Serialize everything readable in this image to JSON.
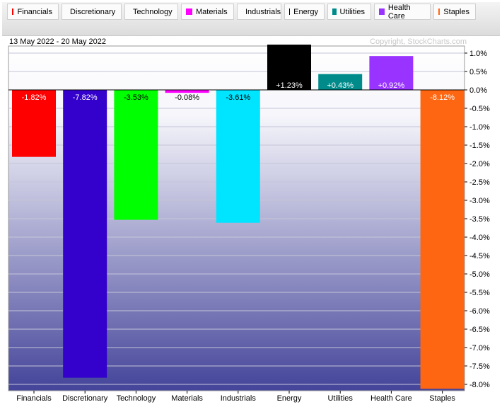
{
  "legend": [
    {
      "label": "Financials",
      "color": "#ff0000"
    },
    {
      "label": "Discretionary",
      "color": "#3300cc"
    },
    {
      "label": "Technology",
      "color": "#00ff00"
    },
    {
      "label": "Materials",
      "color": "#ff00ff"
    },
    {
      "label": "Industrials",
      "color": "#00e5ff"
    },
    {
      "label": "Energy",
      "color": "#000000"
    },
    {
      "label": "Utilities",
      "color": "#008b8b"
    },
    {
      "label": "Health Care",
      "color": "#9933ff"
    },
    {
      "label": "Staples",
      "color": "#ff6611"
    }
  ],
  "date_range": "13 May 2022 - 20 May 2022",
  "copyright": "Copyright, StockCharts.com",
  "chart_data": {
    "type": "bar",
    "categories": [
      "Financials",
      "Discretionary",
      "Technology",
      "Materials",
      "Industrials",
      "Energy",
      "Utilities",
      "Health Care",
      "Staples"
    ],
    "values": [
      -1.82,
      -7.82,
      -3.53,
      -0.08,
      -3.61,
      1.23,
      0.43,
      0.92,
      -8.12
    ],
    "labels": [
      "-1.82%",
      "-7.82%",
      "-3.53%",
      "-0.08%",
      "-3.61%",
      "+1.23%",
      "+0.43%",
      "+0.92%",
      "-8.12%"
    ],
    "colors": [
      "#ff0000",
      "#3300cc",
      "#00ff00",
      "#ff00ff",
      "#00e5ff",
      "#000000",
      "#008b8b",
      "#9933ff",
      "#ff6611"
    ],
    "ylim": [
      -8.2,
      1.2
    ],
    "yticks": [
      1.0,
      0.5,
      0.0,
      -0.5,
      -1.0,
      -1.5,
      -2.0,
      -2.5,
      -3.0,
      -3.5,
      -4.0,
      -4.5,
      -5.0,
      -5.5,
      -6.0,
      -6.5,
      -7.0,
      -7.5,
      -8.0
    ],
    "ytick_labels": [
      "1.0%",
      "0.5%",
      "0.0%",
      "-0.5%",
      "-1.0%",
      "-1.5%",
      "-2.0%",
      "-2.5%",
      "-3.0%",
      "-3.5%",
      "-4.0%",
      "-4.5%",
      "-5.0%",
      "-5.5%",
      "-6.0%",
      "-6.5%",
      "-7.0%",
      "-7.5%",
      "-8.0%"
    ],
    "grid": true
  }
}
